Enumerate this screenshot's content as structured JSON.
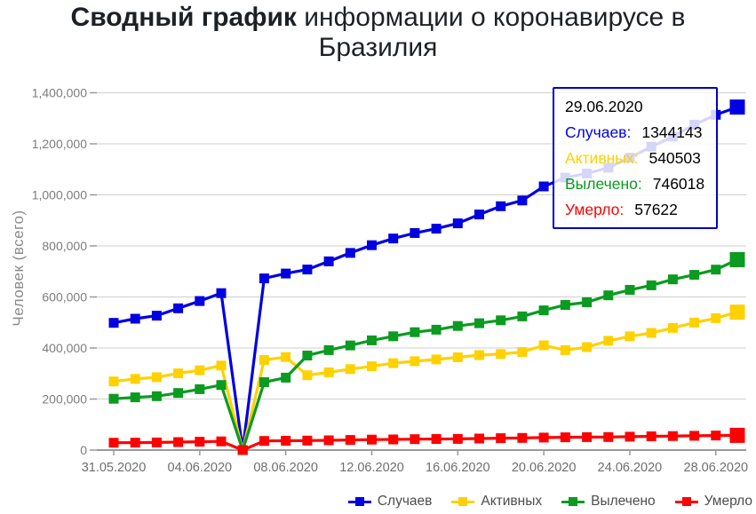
{
  "page": {
    "background": "#ffffff"
  },
  "header": {
    "title_bold": "Сводный график",
    "title_rest": " информации о коронавирусе в",
    "title_line2": "Бразилия"
  },
  "y_axis_title": "Человек (всего)",
  "tooltip": {
    "date": "29.06.2020",
    "border_color": "#0000cc",
    "rows": [
      {
        "label": "Случаев:",
        "value": "1344143"
      },
      {
        "label": "Активных:",
        "value": "540503"
      },
      {
        "label": "Вылечено:",
        "value": "746018"
      },
      {
        "label": "Умерло:",
        "value": "57622"
      }
    ]
  },
  "chart_data": {
    "type": "line",
    "title": "Сводный график информации о коронавирусе в Бразилия",
    "xlabel": "",
    "ylabel": "Человек (всего)",
    "ylim": [
      0,
      1400000
    ],
    "y_ticks": [
      0,
      200000,
      400000,
      600000,
      800000,
      1000000,
      1200000,
      1400000
    ],
    "grid": true,
    "legend_position": "bottom-right",
    "marker": "square",
    "x_tick_labels": [
      "31.05.2020",
      "04.06.2020",
      "08.06.2020",
      "12.06.2020",
      "16.06.2020",
      "20.06.2020",
      "24.06.2020",
      "28.06.2020"
    ],
    "categories": [
      "31.05.2020",
      "01.06.2020",
      "02.06.2020",
      "03.06.2020",
      "04.06.2020",
      "05.06.2020",
      "06.06.2020",
      "07.06.2020",
      "08.06.2020",
      "09.06.2020",
      "10.06.2020",
      "11.06.2020",
      "12.06.2020",
      "13.06.2020",
      "14.06.2020",
      "15.06.2020",
      "16.06.2020",
      "17.06.2020",
      "18.06.2020",
      "19.06.2020",
      "20.06.2020",
      "21.06.2020",
      "22.06.2020",
      "23.06.2020",
      "24.06.2020",
      "25.06.2020",
      "26.06.2020",
      "27.06.2020",
      "28.06.2020",
      "29.06.2020"
    ],
    "series": [
      {
        "name": "Случаев",
        "color": "#0000e0",
        "values": [
          498440,
          514849,
          526447,
          555383,
          584016,
          614941,
          0,
          672846,
          691758,
          707412,
          739503,
          772416,
          802828,
          828810,
          850514,
          867624,
          888271,
          923189,
          955377,
          978142,
          1032913,
          1067579,
          1083341,
          1106470,
          1145906,
          1188631,
          1228114,
          1274974,
          1313667,
          1344143
        ]
      },
      {
        "name": "Активных",
        "color": "#ffd100",
        "values": [
          268714,
          278980,
          285430,
          300546,
          312851,
          331063,
          0,
          352964,
          364528,
          293260,
          304817,
          317060,
          328420,
          340413,
          348306,
          354964,
          363618,
          372071,
          376320,
          384286,
          410299,
          391542,
          403464,
          428337,
          445732,
          459175,
          478766,
          499326,
          516958,
          540503
        ]
      },
      {
        "name": "Вылечено",
        "color": "#0a9b20",
        "values": [
          200892,
          206555,
          211080,
          223638,
          238617,
          254963,
          0,
          266132,
          283952,
          370496,
          391631,
          409974,
          430016,
          445813,
          461877,
          471805,
          486159,
          497114,
          508405,
          523659,
          547386,
          568524,
          579226,
          606411,
          627963,
          645489,
          668930,
          686452,
          707210,
          746018
        ]
      },
      {
        "name": "Умерло",
        "color": "#ff0000",
        "values": [
          28834,
          29314,
          29937,
          31199,
          32548,
          34021,
          0,
          35930,
          36455,
          37134,
          38406,
          39680,
          40919,
          41828,
          42720,
          43332,
          43959,
          45241,
          46510,
          47748,
          48954,
          49976,
          50617,
          51271,
          52645,
          53830,
          54971,
          55961,
          57070,
          57622
        ]
      }
    ]
  }
}
